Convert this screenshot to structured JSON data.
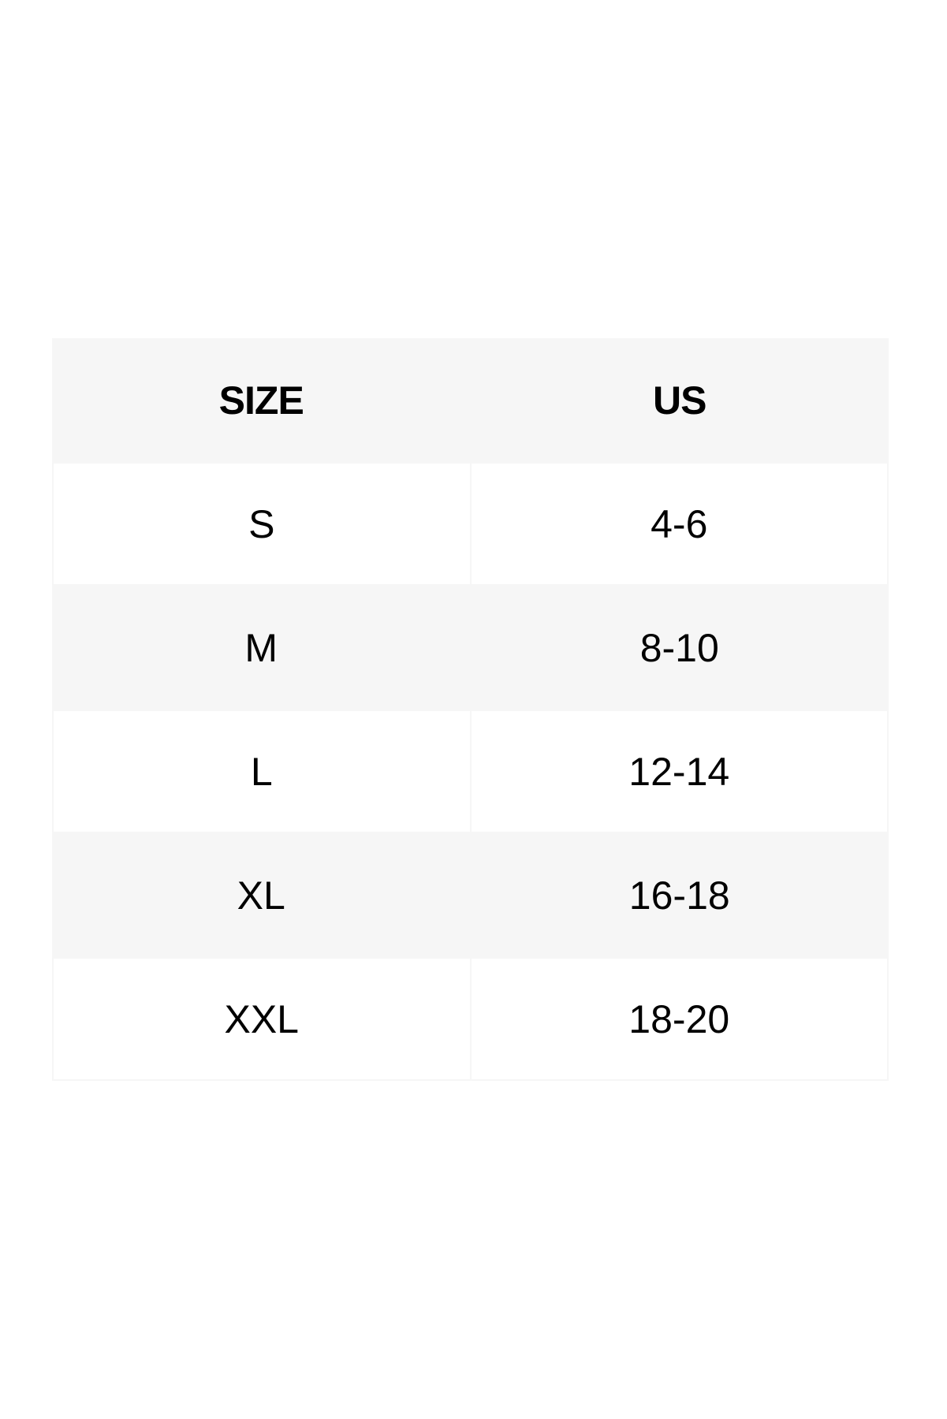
{
  "table": {
    "headers": [
      "SIZE",
      "US"
    ],
    "rows": [
      [
        "S",
        "4-6"
      ],
      [
        "M",
        "8-10"
      ],
      [
        "L",
        "12-14"
      ],
      [
        "XL",
        "16-18"
      ],
      [
        "XXL",
        "18-20"
      ]
    ]
  },
  "colors": {
    "stripe": "#f6f6f6",
    "background": "#ffffff"
  }
}
